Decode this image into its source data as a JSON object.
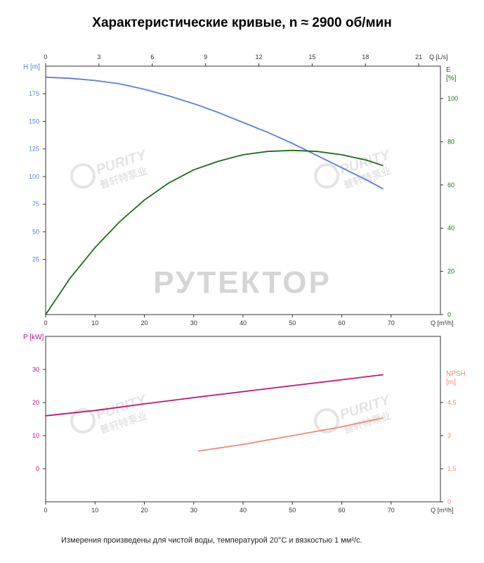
{
  "title": "Характеристические кривые, n ≈ 2900 об/мин",
  "footnote": "Измерения произведены для чистой воды, температурой 20°С и вязкостью 1 мм²/с.",
  "watermark": {
    "main": "РУТЕКТОР",
    "brand_en": "PURITY",
    "brand_cn": "普轩特泵业"
  },
  "colors": {
    "head": "#5b7be8",
    "efficiency": "#1b6e1b",
    "power": "#c8107a",
    "npsh": "#f08a72",
    "axis": "#333333"
  },
  "chart_data": [
    {
      "type": "line",
      "name": "upper",
      "x_axis": {
        "label": "Q [m³/h]",
        "range": [
          0,
          80
        ],
        "ticks": [
          0,
          10,
          20,
          30,
          40,
          50,
          60,
          70
        ]
      },
      "x2_axis": {
        "label": "Q [L/s]",
        "range": [
          0,
          22.2222
        ],
        "ticks": [
          0,
          3,
          6,
          9,
          12,
          15,
          18,
          21
        ]
      },
      "y_axis": {
        "label": "H [m]",
        "range": [
          -25,
          200
        ],
        "ticks": [
          25,
          50,
          75,
          100,
          125,
          150,
          175
        ]
      },
      "y2_axis": {
        "label": "E [%]",
        "range": [
          0,
          115
        ],
        "ticks": [
          0,
          20,
          40,
          60,
          80,
          100
        ]
      },
      "series": [
        {
          "name": "H",
          "axis": "y",
          "color_key": "head",
          "x": [
            0,
            5,
            10,
            15,
            20,
            25,
            30,
            35,
            40,
            45,
            50,
            55,
            60,
            65,
            68.3
          ],
          "y": [
            190,
            189,
            187,
            184,
            179,
            173,
            166,
            158,
            149,
            140,
            130,
            119,
            108,
            97,
            89
          ]
        },
        {
          "name": "E",
          "axis": "y2",
          "color_key": "efficiency",
          "x": [
            0,
            5,
            10,
            15,
            20,
            25,
            30,
            35,
            40,
            45,
            50,
            55,
            60,
            65,
            68.3
          ],
          "y": [
            0,
            17,
            31,
            43,
            53,
            61,
            67,
            71,
            74,
            75.5,
            76,
            75.5,
            74,
            71.5,
            69
          ]
        }
      ]
    },
    {
      "type": "line",
      "name": "lower",
      "x_axis": {
        "label": "Q [m³/h]",
        "range": [
          0,
          80
        ],
        "ticks": [
          0,
          10,
          20,
          30,
          40,
          50,
          60,
          70
        ]
      },
      "y_axis": {
        "label": "P [kW]",
        "range": [
          -10,
          40
        ],
        "ticks": [
          0,
          10,
          20,
          30
        ]
      },
      "y2_axis": {
        "label": "NPSH [m]",
        "range": [
          0,
          7.5
        ],
        "ticks": [
          0,
          1.5,
          3,
          4.5
        ]
      },
      "series": [
        {
          "name": "P",
          "axis": "y",
          "color_key": "power",
          "x": [
            0,
            10,
            20,
            30,
            40,
            50,
            60,
            68.3
          ],
          "y": [
            16,
            17.6,
            19.6,
            21.5,
            23.3,
            25.1,
            26.9,
            28.4
          ]
        },
        {
          "name": "NPSH",
          "axis": "y2",
          "color_key": "npsh",
          "x": [
            31,
            40,
            50,
            60,
            68.3
          ],
          "y": [
            2.3,
            2.6,
            3.0,
            3.4,
            3.8
          ]
        }
      ]
    }
  ]
}
